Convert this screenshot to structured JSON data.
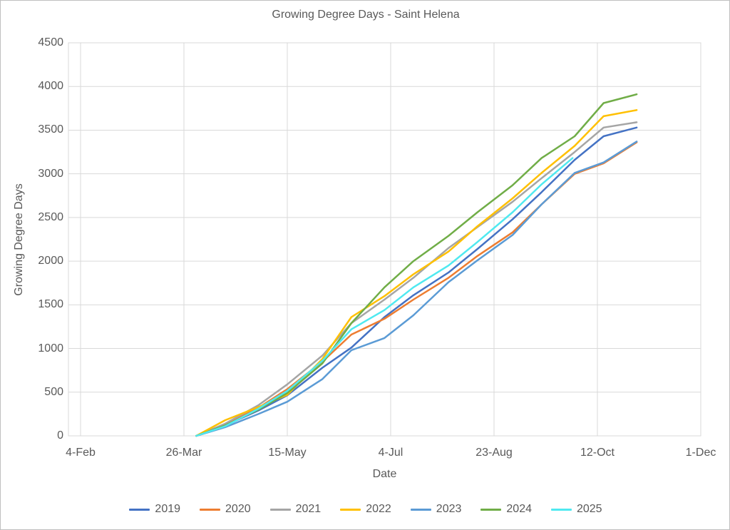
{
  "window": {
    "background": "#ffffff",
    "border_color": "#bfbfbf"
  },
  "chart_data": {
    "type": "line",
    "title": "Growing Degree Days - Saint Helena",
    "xlabel": "Date",
    "ylabel": "Growing Degree Days",
    "ylim": [
      0,
      4500
    ],
    "y_ticks": [
      0,
      500,
      1000,
      1500,
      2000,
      2500,
      3000,
      3500,
      4000,
      4500
    ],
    "x_tick_labels": [
      "4-Feb",
      "26-Mar",
      "15-May",
      "4-Jul",
      "23-Aug",
      "12-Oct",
      "1-Dec"
    ],
    "x_tick_days": [
      0,
      50,
      100,
      150,
      200,
      250,
      300
    ],
    "x_unit": "days since 4-Feb",
    "grid": true,
    "legend_position": "bottom",
    "text_color": "#595959",
    "grid_color": "#d9d9d9",
    "series": [
      {
        "name": "2019",
        "color": "#4472C4",
        "points": [
          [
            56,
            0
          ],
          [
            70,
            120
          ],
          [
            86,
            290
          ],
          [
            100,
            465
          ],
          [
            117,
            780
          ],
          [
            131,
            1010
          ],
          [
            147,
            1360
          ],
          [
            161,
            1610
          ],
          [
            178,
            1870
          ],
          [
            192,
            2140
          ],
          [
            209,
            2480
          ],
          [
            223,
            2790
          ],
          [
            239,
            3160
          ],
          [
            253,
            3430
          ],
          [
            269,
            3530
          ]
        ]
      },
      {
        "name": "2020",
        "color": "#ED7D31",
        "points": [
          [
            56,
            0
          ],
          [
            70,
            130
          ],
          [
            86,
            320
          ],
          [
            100,
            535
          ],
          [
            117,
            850
          ],
          [
            131,
            1160
          ],
          [
            147,
            1340
          ],
          [
            161,
            1560
          ],
          [
            178,
            1810
          ],
          [
            192,
            2060
          ],
          [
            209,
            2330
          ],
          [
            223,
            2650
          ],
          [
            239,
            3000
          ],
          [
            253,
            3120
          ],
          [
            269,
            3360
          ]
        ]
      },
      {
        "name": "2021",
        "color": "#A5A5A5",
        "points": [
          [
            56,
            0
          ],
          [
            70,
            140
          ],
          [
            86,
            350
          ],
          [
            100,
            590
          ],
          [
            117,
            920
          ],
          [
            131,
            1290
          ],
          [
            147,
            1560
          ],
          [
            161,
            1810
          ],
          [
            178,
            2150
          ],
          [
            192,
            2390
          ],
          [
            209,
            2680
          ],
          [
            223,
            2950
          ],
          [
            239,
            3250
          ],
          [
            253,
            3530
          ],
          [
            269,
            3590
          ]
        ]
      },
      {
        "name": "2022",
        "color": "#FFC000",
        "points": [
          [
            56,
            0
          ],
          [
            70,
            180
          ],
          [
            86,
            330
          ],
          [
            100,
            470
          ],
          [
            117,
            880
          ],
          [
            131,
            1360
          ],
          [
            147,
            1600
          ],
          [
            161,
            1850
          ],
          [
            178,
            2110
          ],
          [
            192,
            2400
          ],
          [
            209,
            2720
          ],
          [
            223,
            3010
          ],
          [
            239,
            3320
          ],
          [
            253,
            3660
          ],
          [
            269,
            3730
          ]
        ]
      },
      {
        "name": "2023",
        "color": "#5B9BD5",
        "points": [
          [
            56,
            0
          ],
          [
            70,
            100
          ],
          [
            86,
            250
          ],
          [
            100,
            390
          ],
          [
            117,
            650
          ],
          [
            131,
            980
          ],
          [
            147,
            1120
          ],
          [
            161,
            1380
          ],
          [
            178,
            1760
          ],
          [
            192,
            2010
          ],
          [
            209,
            2300
          ],
          [
            223,
            2650
          ],
          [
            239,
            3010
          ],
          [
            253,
            3130
          ],
          [
            269,
            3370
          ]
        ]
      },
      {
        "name": "2024",
        "color": "#70AD47",
        "points": [
          [
            56,
            0
          ],
          [
            70,
            120
          ],
          [
            86,
            300
          ],
          [
            100,
            490
          ],
          [
            117,
            830
          ],
          [
            131,
            1290
          ],
          [
            147,
            1700
          ],
          [
            161,
            2000
          ],
          [
            178,
            2290
          ],
          [
            192,
            2560
          ],
          [
            209,
            2870
          ],
          [
            223,
            3180
          ],
          [
            239,
            3430
          ],
          [
            253,
            3810
          ],
          [
            269,
            3910
          ]
        ]
      },
      {
        "name": "2025",
        "color": "#4FE9F0",
        "points": [
          [
            56,
            0
          ],
          [
            70,
            110
          ],
          [
            86,
            310
          ],
          [
            100,
            515
          ],
          [
            117,
            860
          ],
          [
            131,
            1220
          ],
          [
            147,
            1440
          ],
          [
            161,
            1700
          ],
          [
            178,
            1950
          ],
          [
            192,
            2220
          ],
          [
            209,
            2560
          ],
          [
            223,
            2880
          ],
          [
            238,
            3180
          ]
        ]
      }
    ]
  }
}
